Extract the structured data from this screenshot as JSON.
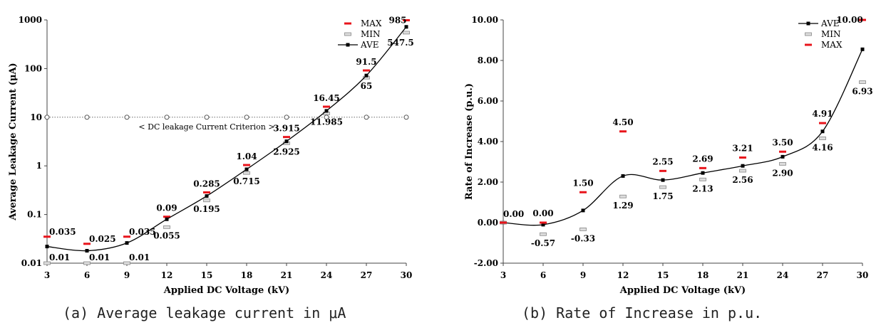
{
  "chart_data": [
    {
      "type": "line",
      "panel": "a",
      "x": [
        3,
        6,
        9,
        12,
        15,
        18,
        21,
        24,
        27,
        30
      ],
      "xlabel": "Applied DC Voltage (kV)",
      "ylabel": "Average Leakage Current (μA)",
      "yscale": "log",
      "ylim": [
        0.01,
        1000
      ],
      "yticks": [
        "0.01",
        "0.1",
        "1",
        "10",
        "100",
        "1000"
      ],
      "xticks": [
        "3",
        "6",
        "9",
        "12",
        "15",
        "18",
        "21",
        "24",
        "27",
        "30"
      ],
      "legend_position": "top-right",
      "series": [
        {
          "name": "MAX",
          "color": "#e8141b",
          "values": [
            0.035,
            0.025,
            0.035,
            0.09,
            0.285,
            1.04,
            3.915,
            16.45,
            91.5,
            985
          ],
          "labels": [
            "0.035",
            "0.025",
            "0.035",
            "0.09",
            "0.285",
            "1.04",
            "3.915",
            "16.45",
            "91.5",
            "985"
          ]
        },
        {
          "name": "MIN",
          "color": "#aaaaaa",
          "values": [
            0.01,
            0.01,
            0.01,
            0.055,
            0.195,
            0.715,
            2.925,
            11.985,
            65,
            547.5
          ],
          "labels": [
            "0.01",
            "0.01",
            "0.01",
            "0.055",
            "0.195",
            "0.715",
            "2.925",
            "11.985",
            "65",
            "547.5"
          ]
        },
        {
          "name": "AVE",
          "color": "#000000",
          "values": [
            0.022,
            0.018,
            0.026,
            0.08,
            0.24,
            0.85,
            3.2,
            13.5,
            72,
            720
          ]
        }
      ],
      "criterion": {
        "value": 10,
        "label": "< DC leakage Current Criterion >"
      }
    },
    {
      "type": "line",
      "panel": "b",
      "x": [
        3,
        6,
        9,
        12,
        15,
        18,
        21,
        24,
        27,
        30
      ],
      "xlabel": "Applied DC Voltage (kV)",
      "ylabel": "Rate of Increase (p.u.)",
      "ylim": [
        -2,
        10
      ],
      "yticks": [
        "-2.00",
        "0.00",
        "2.00",
        "4.00",
        "6.00",
        "8.00",
        "10.00"
      ],
      "xticks": [
        "3",
        "6",
        "9",
        "12",
        "15",
        "18",
        "21",
        "24",
        "27",
        "30"
      ],
      "legend_position": "top-right",
      "series": [
        {
          "name": "AVE",
          "color": "#000000",
          "values": [
            0.0,
            -0.1,
            0.6,
            2.3,
            2.1,
            2.45,
            2.8,
            3.25,
            4.5,
            8.55
          ]
        },
        {
          "name": "MIN",
          "color": "#aaaaaa",
          "values": [
            0.0,
            -0.57,
            -0.33,
            1.29,
            1.75,
            2.13,
            2.56,
            2.9,
            4.16,
            6.93
          ],
          "labels": [
            "",
            "-0.57",
            "-0.33",
            "1.29",
            "1.75",
            "2.13",
            "2.56",
            "2.90",
            "4.16",
            "6.93"
          ]
        },
        {
          "name": "MAX",
          "color": "#e8141b",
          "values": [
            0.0,
            0.0,
            1.5,
            4.5,
            2.55,
            2.69,
            3.21,
            3.5,
            4.91,
            10.0
          ],
          "labels": [
            "0.00",
            "0.00",
            "1.50",
            "4.50",
            "2.55",
            "2.69",
            "3.21",
            "3.50",
            "4.91",
            "10.00"
          ]
        }
      ]
    }
  ],
  "captions": {
    "a": "(a) Average leakage current in μA",
    "b": "(b) Rate of Increase in p.u."
  }
}
